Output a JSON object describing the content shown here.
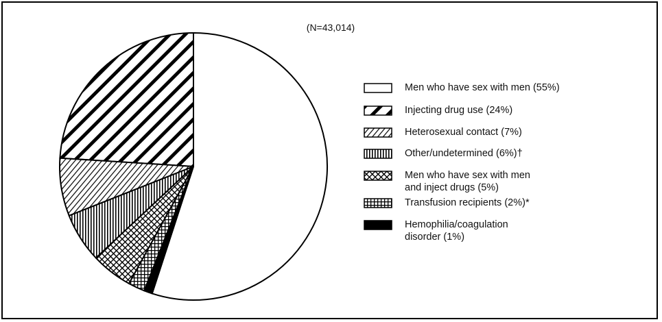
{
  "chart_data": {
    "type": "pie",
    "title": "(N=43,014)",
    "categories": [
      "Men who have sex with men (55%)",
      "Injecting drug use (24%)",
      "Heterosexual contact (7%)",
      "Other/undetermined (6%)†",
      "Men who have sex with men\nand inject drugs (5%)",
      "Transfusion recipients (2%)*",
      "Hemophilia/coagulation\ndisorder (1%)"
    ],
    "values": [
      55,
      24,
      7,
      6,
      5,
      2,
      1
    ]
  }
}
